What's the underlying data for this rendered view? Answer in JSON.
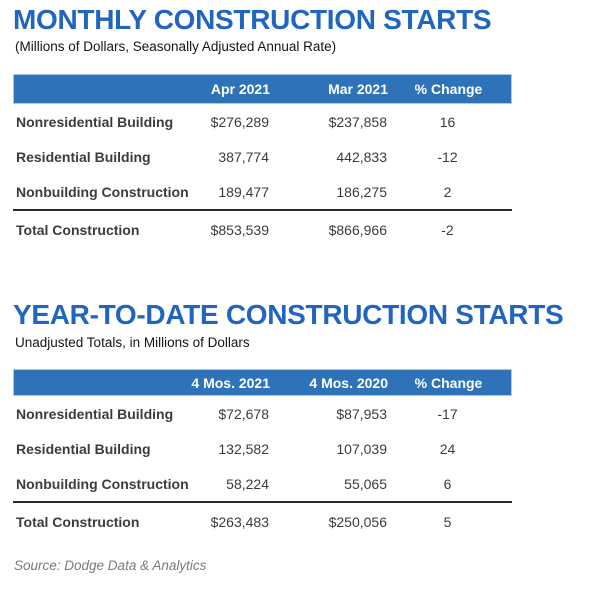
{
  "colors": {
    "title_blue": "#2166be",
    "header_bar_blue": "#2e73b8",
    "header_text": "#ffffff",
    "body_text": "#3c3c3c",
    "divider": "#2b2b2b",
    "source_text": "#7a7a7a",
    "background": "#ffffff"
  },
  "monthly": {
    "title": "MONTHLY CONSTRUCTION STARTS",
    "subtitle": "(Millions of Dollars, Seasonally Adjusted Annual Rate)",
    "columns": {
      "current": "Apr 2021",
      "previous": "Mar 2021",
      "change": "% Change"
    },
    "rows": [
      {
        "label": "Nonresidential Building",
        "current": "$276,289",
        "previous": "$237,858",
        "change": "16"
      },
      {
        "label": "Residential Building",
        "current": "387,774",
        "previous": "442,833",
        "change": "-12"
      },
      {
        "label": "Nonbuilding Construction",
        "current": "189,477",
        "previous": "186,275",
        "change": "2"
      }
    ],
    "total": {
      "label": "Total Construction",
      "current": "$853,539",
      "previous": "$866,966",
      "change": "-2"
    }
  },
  "ytd": {
    "title": "YEAR-TO-DATE CONSTRUCTION STARTS",
    "subtitle": "Unadjusted Totals, in Millions of Dollars",
    "columns": {
      "current": "4 Mos. 2021",
      "previous": "4 Mos. 2020",
      "change": "% Change"
    },
    "rows": [
      {
        "label": "Nonresidential Building",
        "current": "$72,678",
        "previous": "$87,953",
        "change": "-17"
      },
      {
        "label": "Residential Building",
        "current": "132,582",
        "previous": "107,039",
        "change": "24"
      },
      {
        "label": "Nonbuilding Construction",
        "current": "58,224",
        "previous": "55,065",
        "change": "6"
      }
    ],
    "total": {
      "label": "Total Construction",
      "current": "$263,483",
      "previous": "$250,056",
      "change": "5"
    }
  },
  "footer": {
    "source": "Source: Dodge Data & Analytics"
  }
}
